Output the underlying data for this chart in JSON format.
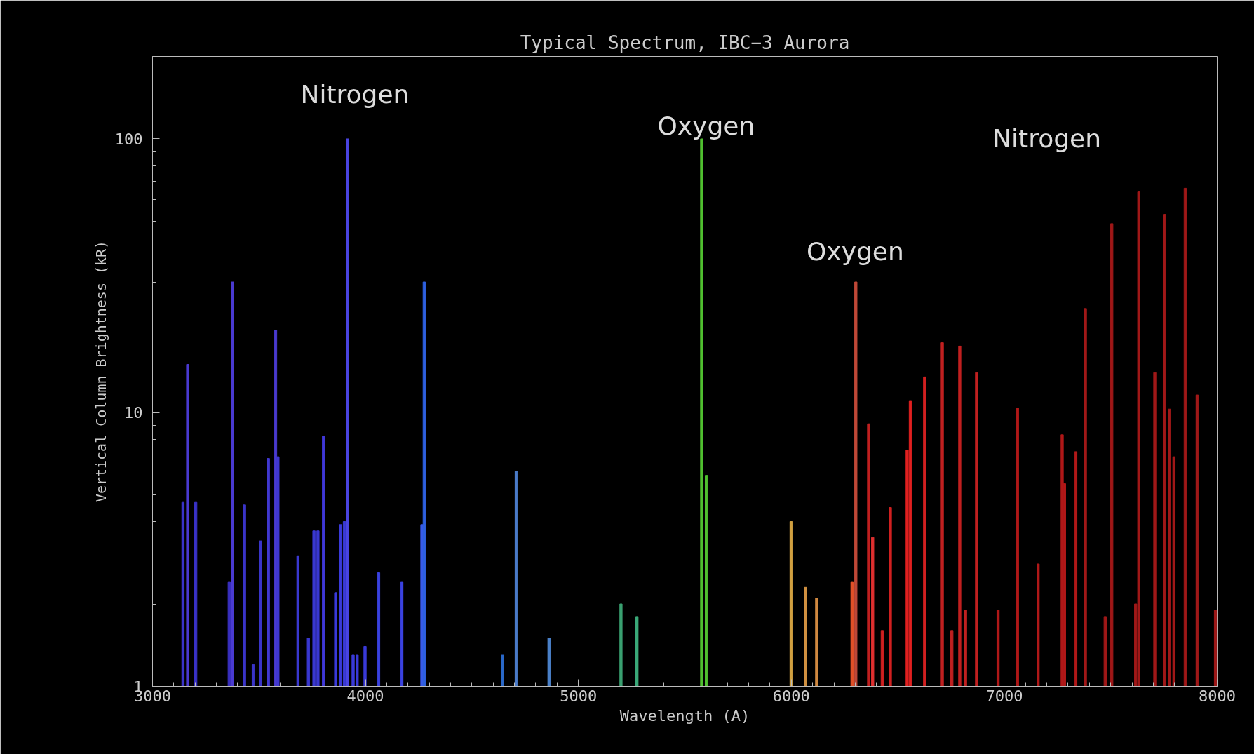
{
  "chart_data": {
    "type": "bar",
    "title": "Typical Spectrum, IBC−3 Aurora",
    "xlabel": "Wavelength (A)",
    "ylabel": "Vertical Column Brightness (kR)",
    "x": [
      3143,
      3165,
      3203,
      3360,
      3375,
      3432,
      3473,
      3507,
      3544,
      3578,
      3589,
      3683,
      3732,
      3758,
      3777,
      3803,
      3860,
      3882,
      3901,
      3916,
      3942,
      3961,
      3998,
      4062,
      4171,
      4265,
      4276,
      4644,
      4708,
      4862,
      5200,
      5275,
      5579,
      5601,
      5999,
      6067,
      6119,
      6285,
      6303,
      6363,
      6382,
      6427,
      6465,
      6544,
      6559,
      6626,
      6709,
      6754,
      6791,
      6818,
      6870,
      6971,
      7062,
      7159,
      7272,
      7283,
      7336,
      7381,
      7474,
      7505,
      7617,
      7632,
      7707,
      7752,
      7775,
      7797,
      7850,
      7906,
      7992
    ],
    "values": [
      4.7,
      15,
      4.7,
      2.4,
      30,
      4.6,
      1.2,
      3.4,
      6.8,
      20,
      6.9,
      3.0,
      1.5,
      3.7,
      3.7,
      8.2,
      2.2,
      3.9,
      4.0,
      100,
      1.3,
      1.3,
      1.4,
      2.6,
      2.4,
      3.9,
      30,
      1.3,
      6.1,
      1.5,
      2.0,
      1.8,
      100,
      5.9,
      4.0,
      2.3,
      2.1,
      2.4,
      30,
      9.1,
      3.5,
      1.6,
      4.5,
      7.3,
      11,
      13.5,
      18,
      1.6,
      17.5,
      1.9,
      14,
      1.9,
      10.4,
      2.8,
      8.3,
      5.5,
      7.2,
      24,
      1.8,
      49,
      2.0,
      64,
      14,
      53,
      10.3,
      6.9,
      66,
      11.6,
      1.9
    ],
    "colors": [
      "#3a32c8",
      "#4a3ad0",
      "#3a32c8",
      "#3a30c0",
      "#4a3ad0",
      "#3a34c8",
      "#3a34c8",
      "#3a34c8",
      "#4038d0",
      "#4a3ad0",
      "#4038d0",
      "#3a38d0",
      "#3a38d0",
      "#3a38d0",
      "#3a38d0",
      "#4038d8",
      "#3a3ad8",
      "#3a3ad8",
      "#3a3ad8",
      "#4a44e0",
      "#3a3ad8",
      "#3a3ad8",
      "#3a3ad8",
      "#3a42e0",
      "#3a42e0",
      "#3a5ae8",
      "#2e60e0",
      "#2a68c8",
      "#4a7ac8",
      "#4a80c8",
      "#3aa070",
      "#3aa878",
      "#50c030",
      "#50c030",
      "#d0a040",
      "#d09040",
      "#d08840",
      "#e05028",
      "#c04838",
      "#c02020",
      "#e03030",
      "#d02020",
      "#d02020",
      "#e02020",
      "#e02020",
      "#d02020",
      "#c02020",
      "#c02020",
      "#c02020",
      "#c02020",
      "#c02020",
      "#b01818",
      "#b01818",
      "#b01818",
      "#b01818",
      "#b01818",
      "#b01818",
      "#a01818",
      "#a01818",
      "#a01818",
      "#a01818",
      "#a01818",
      "#a01818",
      "#a01818",
      "#a01818",
      "#a01818",
      "#a01818",
      "#a01818",
      "#a01818"
    ],
    "xlim": [
      3000,
      8000
    ],
    "ylim": [
      1,
      200
    ],
    "xticks": [
      3000,
      4000,
      5000,
      6000,
      7000,
      8000
    ],
    "yticks": [
      1,
      10,
      100
    ],
    "log": "y",
    "grid": false,
    "annotations": [
      "Nitrogen",
      "Oxygen",
      "Oxygen",
      "Nitrogen"
    ]
  }
}
